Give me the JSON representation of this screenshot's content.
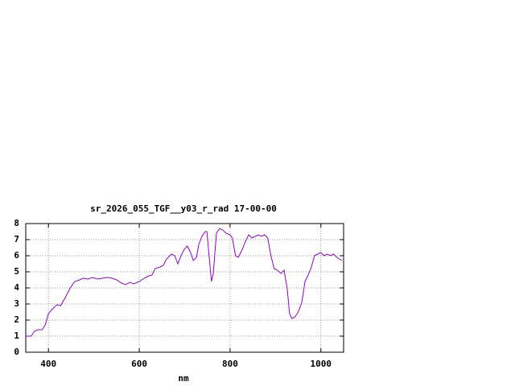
{
  "chart_data": {
    "type": "line",
    "title": "sr_2026_055_TGF__y03_r_rad 17-00-00",
    "x_label": "nm",
    "x": [
      350,
      362,
      369,
      377,
      386,
      393,
      400,
      409,
      419,
      427,
      437,
      448,
      458,
      469,
      476,
      487,
      497,
      508,
      519,
      529,
      540,
      550,
      561,
      570,
      579,
      588,
      600,
      611,
      621,
      628,
      635,
      646,
      653,
      660,
      671,
      678,
      685,
      692,
      699,
      706,
      713,
      719,
      726,
      731,
      738,
      745,
      749,
      754,
      759,
      763,
      770,
      777,
      784,
      791,
      800,
      805,
      812,
      818,
      827,
      834,
      841,
      848,
      855,
      862,
      869,
      876,
      883,
      890,
      897,
      904,
      912,
      919,
      926,
      931,
      936,
      943,
      950,
      958,
      965,
      972,
      979,
      986,
      993,
      1000,
      1007,
      1014,
      1021,
      1028,
      1035,
      1046
    ],
    "series": [
      {
        "color": "#9400d3",
        "values": [
          1.0,
          1.0,
          1.3,
          1.4,
          1.4,
          1.7,
          2.4,
          2.7,
          2.95,
          2.9,
          3.4,
          4.0,
          4.4,
          4.5,
          4.6,
          4.55,
          4.65,
          4.55,
          4.6,
          4.65,
          4.6,
          4.5,
          4.3,
          4.2,
          4.35,
          4.25,
          4.4,
          4.6,
          4.75,
          4.8,
          5.2,
          5.3,
          5.4,
          5.8,
          6.1,
          6.0,
          5.5,
          6.0,
          6.4,
          6.6,
          6.2,
          5.7,
          5.9,
          6.7,
          7.2,
          7.5,
          7.5,
          5.9,
          4.4,
          4.9,
          7.4,
          7.7,
          7.6,
          7.4,
          7.3,
          7.1,
          6.0,
          5.9,
          6.4,
          6.9,
          7.3,
          7.1,
          7.2,
          7.3,
          7.2,
          7.3,
          7.1,
          6.0,
          5.2,
          5.1,
          4.9,
          5.1,
          3.9,
          2.4,
          2.1,
          2.2,
          2.5,
          3.1,
          4.4,
          4.8,
          5.3,
          6.0,
          6.1,
          6.2,
          6.0,
          6.1,
          6.0,
          6.1,
          5.9,
          5.7
        ]
      }
    ],
    "xlim": [
      350,
      1050
    ],
    "ylim": [
      0,
      8
    ],
    "xticks": [
      400,
      600,
      800,
      1000
    ],
    "yticks": [
      0,
      1,
      2,
      3,
      4,
      5,
      6,
      7,
      8
    ],
    "grid": true
  }
}
